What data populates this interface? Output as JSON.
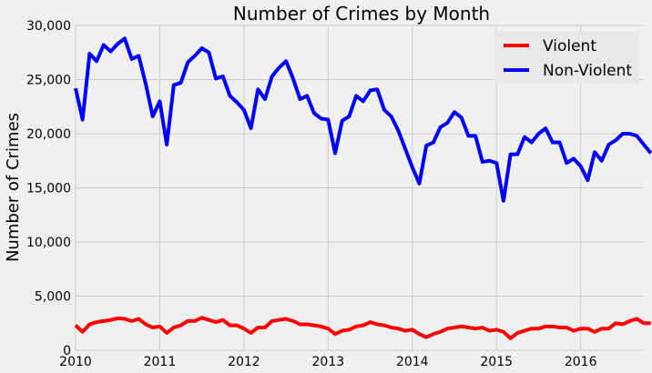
{
  "chart_data": {
    "type": "line",
    "title": "Number of Crimes by Month",
    "xlabel": "",
    "ylabel": "Number of Crimes",
    "ylim": [
      0,
      30000
    ],
    "xlim": [
      2010,
      2016.75
    ],
    "x_ticks": [
      2010,
      2011,
      2012,
      2013,
      2014,
      2015,
      2016
    ],
    "x_tick_labels": [
      "2010",
      "2011",
      "2012",
      "2013",
      "2014",
      "2015",
      "2016"
    ],
    "y_ticks": [
      0,
      5000,
      10000,
      15000,
      20000,
      25000,
      30000
    ],
    "y_tick_labels": [
      "0",
      "5,000",
      "10,000",
      "15,000",
      "20,000",
      "25,000",
      "30,000"
    ],
    "grid": true,
    "legend_position": "top-right",
    "x_start": 2010,
    "x_step_months": 1,
    "series": [
      {
        "name": "Violent",
        "color": "#ff0000",
        "values": [
          2300,
          1700,
          2400,
          2600,
          2700,
          2800,
          2950,
          2900,
          2700,
          2900,
          2400,
          2100,
          2200,
          1600,
          2100,
          2300,
          2700,
          2700,
          3000,
          2800,
          2600,
          2800,
          2300,
          2300,
          2000,
          1600,
          2100,
          2100,
          2700,
          2800,
          2900,
          2700,
          2400,
          2400,
          2300,
          2200,
          2000,
          1500,
          1800,
          1900,
          2200,
          2300,
          2600,
          2400,
          2300,
          2100,
          2000,
          1800,
          1900,
          1500,
          1200,
          1500,
          1700,
          2000,
          2100,
          2200,
          2100,
          2000,
          2100,
          1800,
          1900,
          1700,
          1100,
          1600,
          1800,
          2000,
          2000,
          2200,
          2200,
          2100,
          2100,
          1800,
          2000,
          2000,
          1700,
          2000,
          2000,
          2500,
          2400,
          2700,
          2900,
          2500,
          2500
        ]
      },
      {
        "name": "Non-Violent",
        "color": "#0000ff",
        "values": [
          24200,
          21300,
          27400,
          26700,
          28200,
          27600,
          28300,
          28800,
          26900,
          27200,
          24600,
          21600,
          23000,
          19000,
          24500,
          24700,
          26600,
          27200,
          27900,
          27500,
          25100,
          25300,
          23500,
          22900,
          22200,
          20500,
          24100,
          23200,
          25300,
          26100,
          26700,
          25100,
          23200,
          23500,
          21900,
          21400,
          21300,
          18200,
          21200,
          21600,
          23500,
          23000,
          24000,
          24100,
          22200,
          21600,
          20300,
          18600,
          16900,
          15400,
          18900,
          19200,
          20600,
          21000,
          22000,
          21500,
          19800,
          19800,
          17400,
          17500,
          17300,
          13800,
          18100,
          18100,
          19700,
          19200,
          20000,
          20500,
          19200,
          19200,
          17300,
          17700,
          17000,
          15700,
          18300,
          17500,
          19000,
          19400,
          20000,
          20000,
          19800,
          19000,
          18200
        ]
      }
    ]
  }
}
